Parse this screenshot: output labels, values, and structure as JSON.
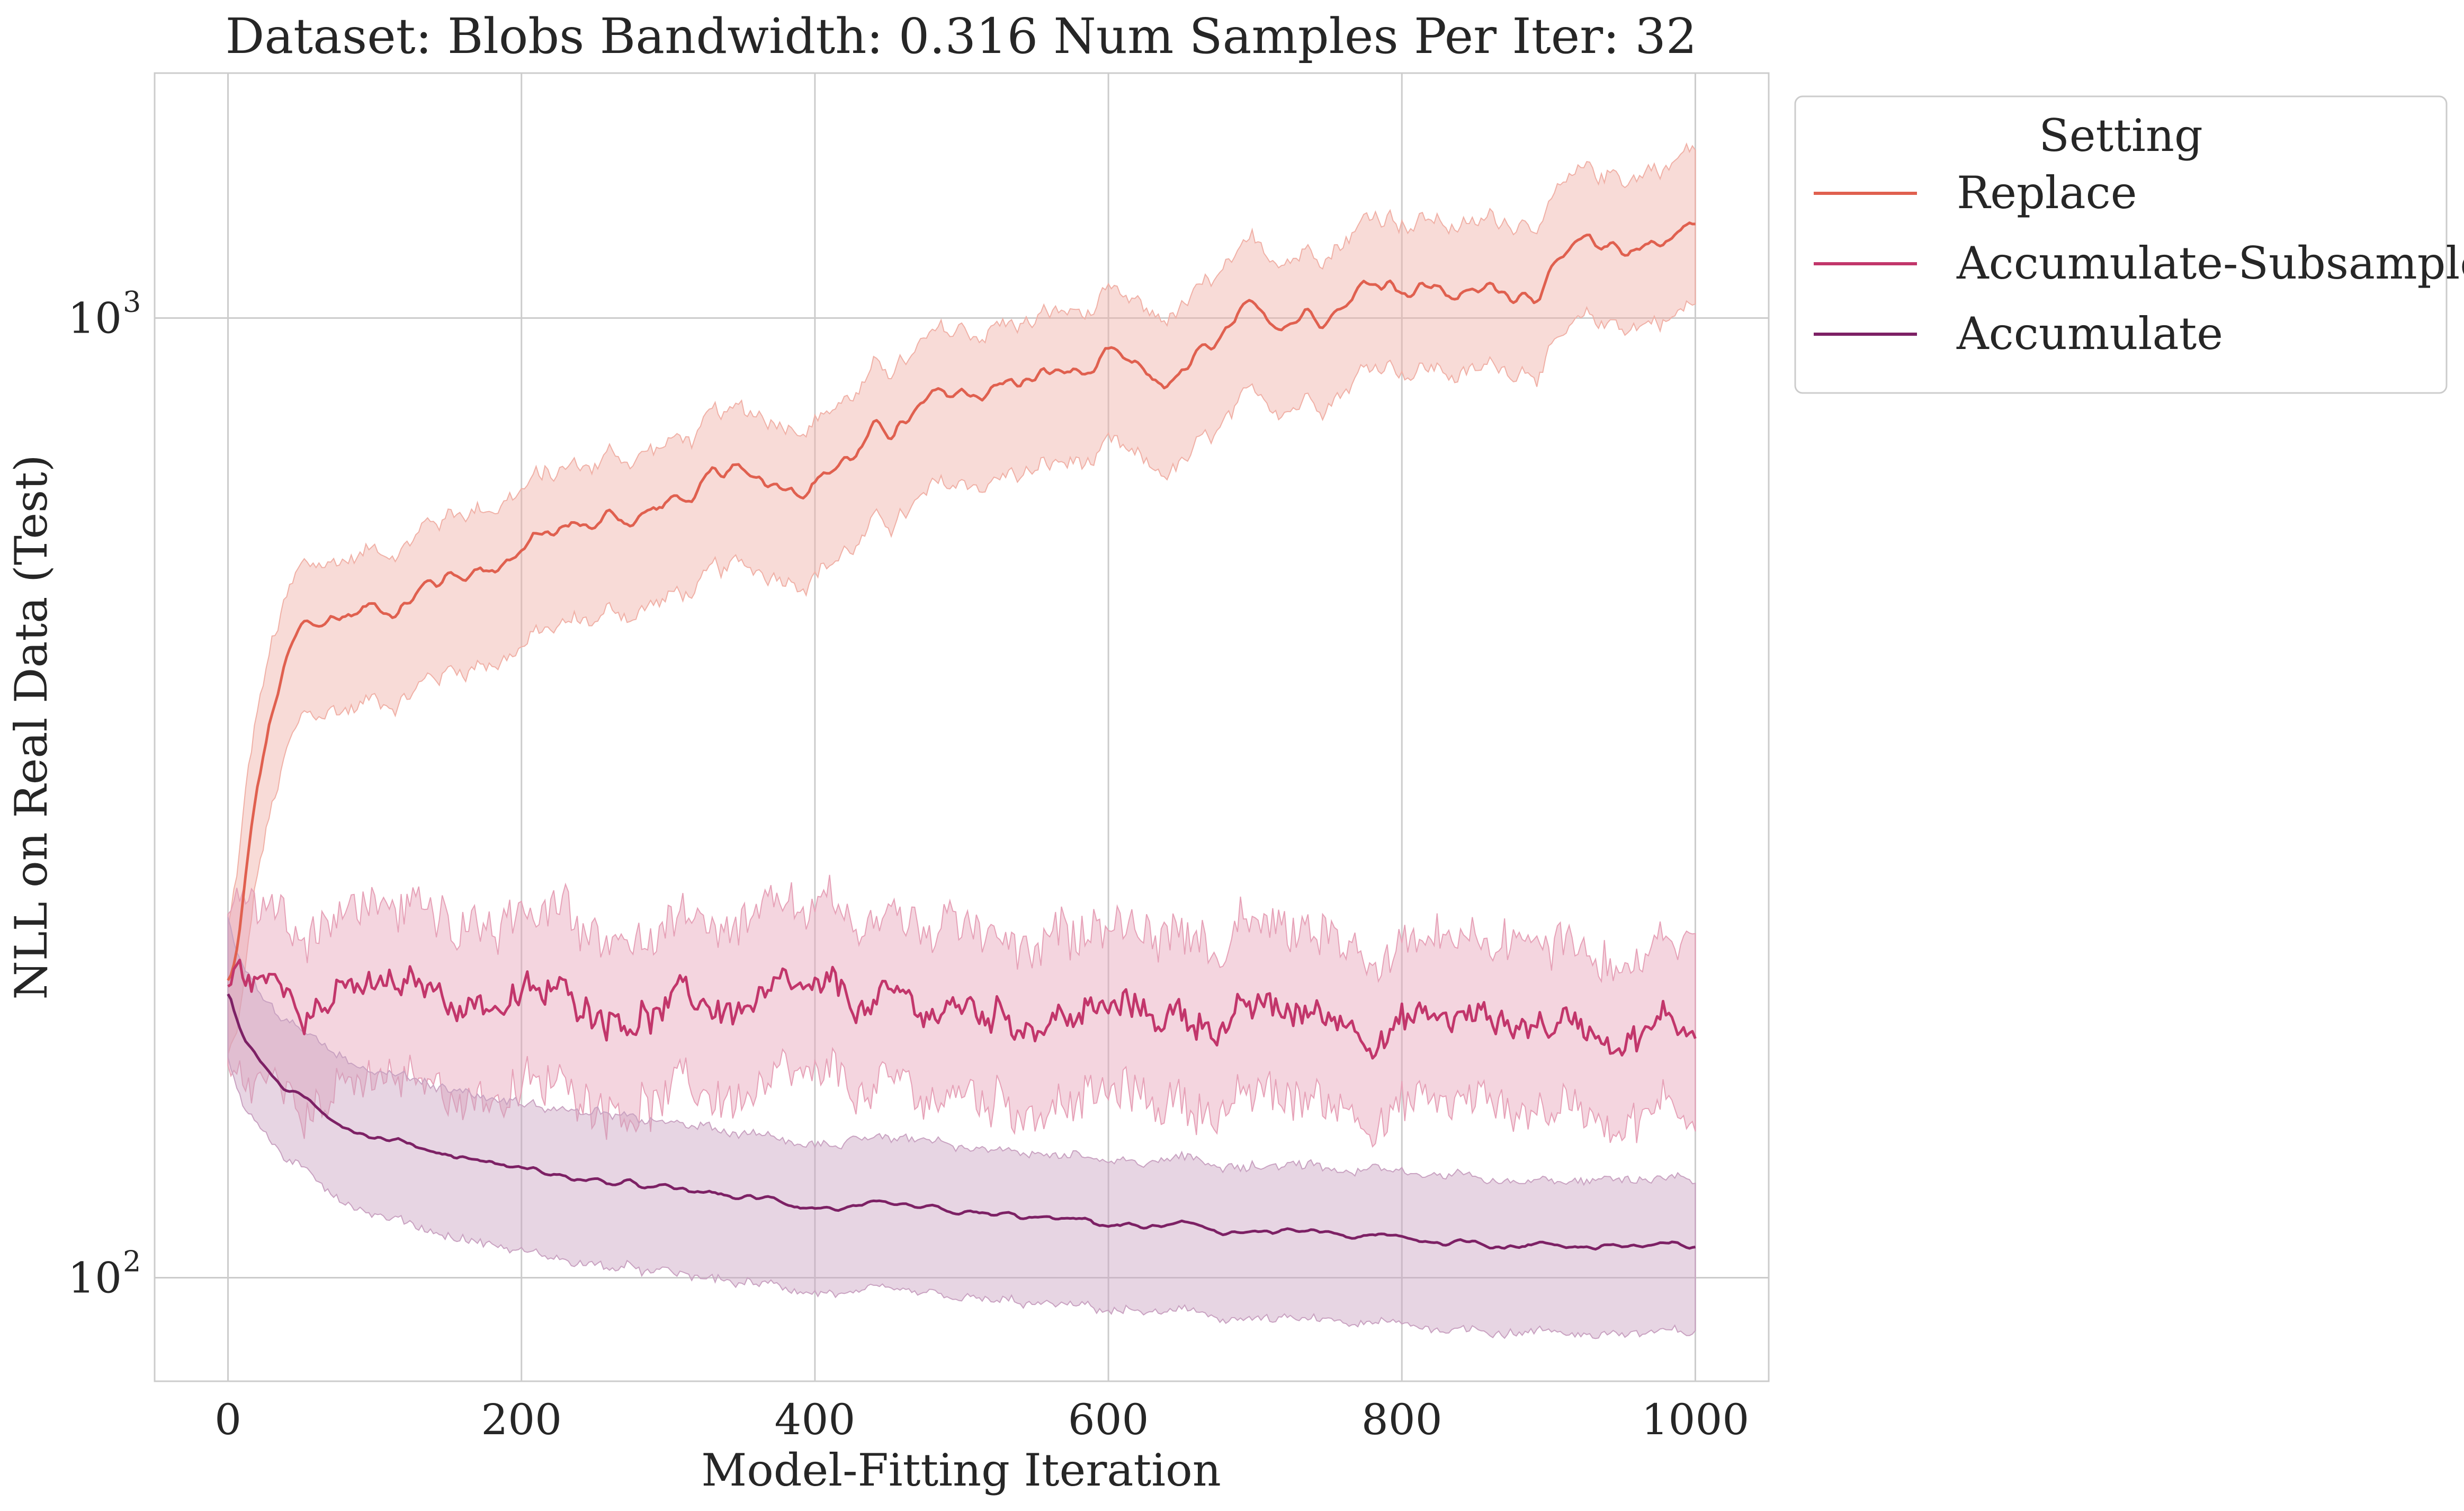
{
  "chart_data": {
    "type": "line",
    "title": "Dataset: Blobs Bandwidth: 0.316 Num Samples Per Iter: 32",
    "xlabel": "Model-Fitting Iteration",
    "ylabel": "NLL on Real Data (Test)",
    "xlim": [
      -50,
      1050
    ],
    "ylim": [
      78,
      1800
    ],
    "yscale": "log",
    "xticks": [
      0,
      200,
      400,
      600,
      800,
      1000
    ],
    "xtick_labels": [
      "0",
      "200",
      "400",
      "600",
      "800",
      "1000"
    ],
    "yticks": [
      100,
      1000
    ],
    "ytick_labels": [
      {
        "base": "10",
        "exp": "2"
      },
      {
        "base": "10",
        "exp": "3"
      }
    ],
    "grid": true,
    "legend": {
      "title": "Setting",
      "placement": "outside-upper-right",
      "entries": [
        "Replace",
        "Accumulate-Subsample",
        "Accumulate"
      ]
    },
    "series": [
      {
        "name": "Replace",
        "color": "#e0604f",
        "band_color": "#f0b0a6",
        "x": [
          0,
          5,
          10,
          15,
          20,
          30,
          40,
          50,
          60,
          70,
          80,
          100,
          150,
          200,
          250,
          300,
          350,
          400,
          450,
          500,
          520,
          550,
          600,
          630,
          660,
          700,
          750,
          790,
          800,
          830,
          850,
          860,
          900,
          950,
          1000
        ],
        "y": [
          200,
          210,
          240,
          280,
          320,
          380,
          430,
          460,
          470,
          480,
          490,
          500,
          540,
          580,
          610,
          640,
          670,
          700,
          760,
          820,
          850,
          860,
          880,
          830,
          880,
          970,
          1060,
          1120,
          1110,
          1080,
          1050,
          1060,
          1120,
          1180,
          1250
        ],
        "lower": [
          170,
          175,
          195,
          225,
          260,
          305,
          345,
          370,
          378,
          385,
          390,
          400,
          430,
          460,
          485,
          510,
          535,
          560,
          610,
          660,
          680,
          690,
          710,
          670,
          710,
          790,
          860,
          920,
          910,
          890,
          870,
          880,
          930,
          980,
          1030
        ],
        "upper": [
          230,
          255,
          295,
          340,
          385,
          450,
          500,
          530,
          540,
          550,
          560,
          575,
          625,
          670,
          705,
          740,
          775,
          810,
          880,
          950,
          980,
          990,
          1020,
          970,
          1030,
          1130,
          1230,
          1310,
          1300,
          1270,
          1240,
          1250,
          1330,
          1400,
          1500
        ]
      },
      {
        "name": "Accumulate-Subsample",
        "color": "#c2366b",
        "band_color": "#e6a1b7",
        "x": [
          0,
          5,
          10,
          20,
          50,
          100,
          200,
          300,
          400,
          500,
          600,
          700,
          800,
          900,
          1000
        ],
        "y": [
          200,
          208,
          205,
          203,
          200,
          197,
          195,
          192,
          190,
          189,
          188,
          187,
          186,
          185,
          184
        ],
        "lower": [
          165,
          160,
          160,
          159,
          158,
          157,
          156,
          155,
          154,
          154,
          153,
          152,
          152,
          151,
          150
        ],
        "upper": [
          240,
          248,
          245,
          243,
          240,
          237,
          235,
          232,
          230,
          229,
          228,
          227,
          226,
          225,
          224
        ]
      },
      {
        "name": "Accumulate",
        "color": "#7d2165",
        "band_color": "#c9a2c1",
        "x": [
          0,
          5,
          10,
          20,
          30,
          40,
          50,
          60,
          80,
          100,
          150,
          200,
          250,
          300,
          350,
          400,
          450,
          500,
          550,
          600,
          650,
          700,
          750,
          800,
          850,
          900,
          950,
          1000
        ],
        "y": [
          200,
          188,
          180,
          170,
          162,
          157,
          153,
          150,
          145,
          141,
          135,
          130,
          126,
          123,
          121,
          119,
          117,
          116,
          115,
          113.5,
          112.5,
          111.5,
          110.5,
          109.5,
          109,
          108.5,
          108,
          107
        ],
        "lower": [
          170,
          160,
          153,
          145,
          138,
          133,
          129,
          126,
          121,
          117,
          111,
          106.5,
          103,
          100.5,
          98.5,
          97,
          95.5,
          94.5,
          93.5,
          92.5,
          91.5,
          90.5,
          89.5,
          89,
          88.5,
          88,
          87.5,
          87
        ],
        "upper": [
          235,
          222,
          212,
          200,
          191,
          185,
          180,
          177,
          171,
          166,
          158,
          152,
          148,
          144,
          141,
          139,
          137,
          135.5,
          134,
          132.5,
          131.5,
          130.5,
          129.5,
          128.5,
          127.5,
          127,
          126.5,
          125.5
        ]
      }
    ]
  }
}
